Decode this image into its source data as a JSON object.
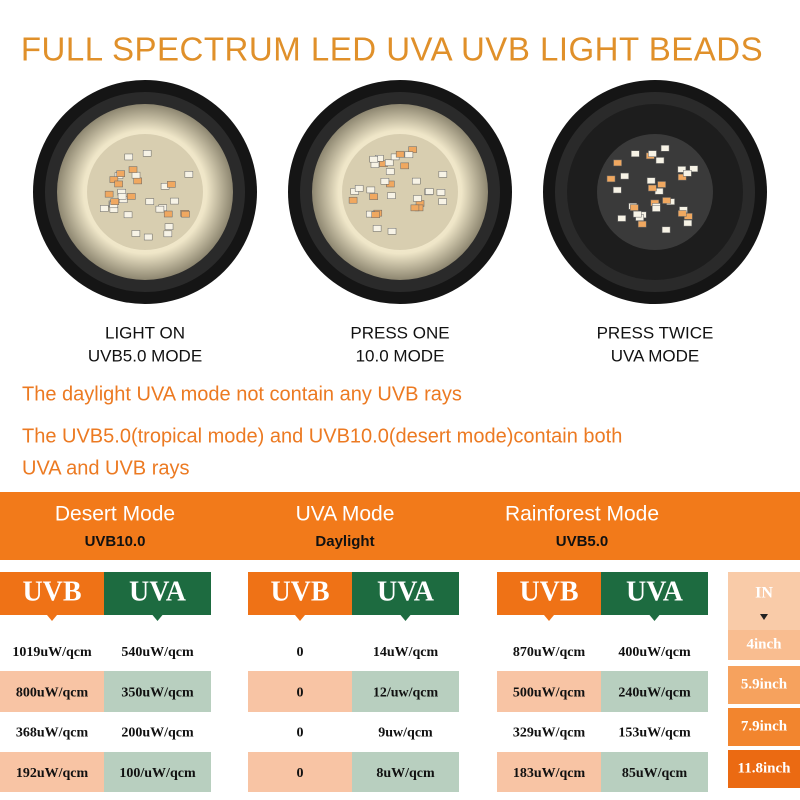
{
  "header": {
    "title": "FULL SPECTRUM LED UVA UVB LIGHT BEADS"
  },
  "lights": [
    {
      "line1": "LIGHT ON",
      "line2": "UVB5.0 MODE"
    },
    {
      "line1": "PRESS ONE",
      "line2": "10.0 MODE"
    },
    {
      "line1": "PRESS TWICE",
      "line2": "UVA MODE"
    }
  ],
  "notes": [
    "The daylight UVA mode not contain any UVB rays",
    "The UVB5.0(tropical mode) and UVB10.0(desert mode)contain both",
    "UVA and UVB rays"
  ],
  "modes": [
    {
      "name": "Desert Mode",
      "sub": "UVB10.0",
      "headers": [
        "UVB",
        "UVA"
      ],
      "rows": [
        [
          "1019uW/qcm",
          "540uW/qcm"
        ],
        [
          "800uW/qcm",
          "350uW/qcm"
        ],
        [
          "368uW/qcm",
          "200uW/qcm"
        ],
        [
          "192uW/qcm",
          "100/uW/qcm"
        ]
      ]
    },
    {
      "name": "UVA Mode",
      "sub": "Daylight",
      "headers": [
        "UVB",
        "UVA"
      ],
      "rows": [
        [
          "0",
          "14uW/qcm"
        ],
        [
          "0",
          "12/uw/qcm"
        ],
        [
          "0",
          "9uw/qcm"
        ],
        [
          "0",
          "8uW/qcm"
        ]
      ]
    },
    {
      "name": "Rainforest Mode",
      "sub": "UVB5.0",
      "headers": [
        "UVB",
        "UVA"
      ],
      "rows": [
        [
          "870uW/qcm",
          "400uW/qcm"
        ],
        [
          "500uW/qcm",
          "240uW/qcm"
        ],
        [
          "329uW/qcm",
          "153uW/qcm"
        ],
        [
          "183uW/qcm",
          "85uW/qcm"
        ]
      ]
    }
  ],
  "distance": {
    "label": "IN",
    "values": [
      "4inch",
      "5.9inch",
      "7.9inch",
      "11.8inch"
    ]
  }
}
